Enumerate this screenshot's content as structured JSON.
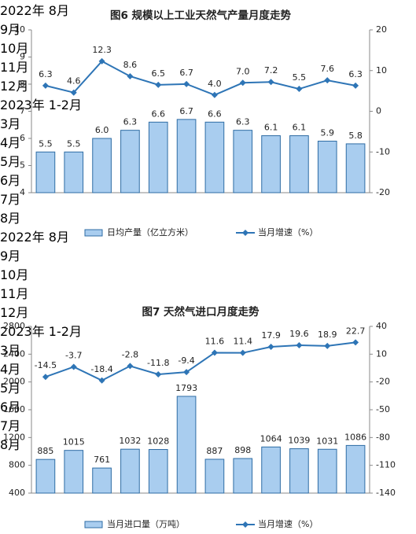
{
  "chart_data": [
    {
      "type": "combo",
      "title": "图6  规模以上工业天然气产量月度走势",
      "categories": [
        "2022年\n8月",
        "9月",
        "10月",
        "11月",
        "12月",
        "2023年\n1-2月",
        "3月",
        "4月",
        "5月",
        "6月",
        "7月",
        "8月"
      ],
      "ylim": [
        4,
        10
      ],
      "yticks": [
        4,
        5,
        6,
        7,
        8,
        9,
        10
      ],
      "y2lim": [
        -20,
        20
      ],
      "y2ticks": [
        -20,
        -10,
        0,
        10,
        20
      ],
      "grid": false,
      "legend": "bottom",
      "series": [
        {
          "name": "日均产量（亿立方米）",
          "type": "bar",
          "color": "#a9cdef",
          "values": [
            5.5,
            5.5,
            6.0,
            6.3,
            6.6,
            6.7,
            6.6,
            6.3,
            6.1,
            6.1,
            5.9,
            5.8
          ],
          "value_labels": [
            "5.5",
            "5.5",
            "6.0",
            "6.3",
            "6.6",
            "6.7",
            "6.6",
            "6.3",
            "6.1",
            "6.1",
            "5.9",
            "5.8"
          ]
        },
        {
          "name": "当月增速（%）",
          "type": "line",
          "axis": "y2",
          "color": "#2e75b6",
          "values": [
            6.3,
            4.6,
            12.3,
            8.6,
            6.5,
            6.7,
            4.0,
            7.0,
            7.2,
            5.5,
            7.6,
            6.3
          ],
          "value_labels": [
            "6.3",
            "4.6",
            "12.3",
            "8.6",
            "6.5",
            "6.7",
            "4.0",
            "7.0",
            "7.2",
            "5.5",
            "7.6",
            "6.3"
          ]
        }
      ]
    },
    {
      "type": "combo",
      "title": "图7  天然气进口月度走势",
      "categories": [
        "2022年\n8月",
        "9月",
        "10月",
        "11月",
        "12月",
        "2023年\n1-2月",
        "3月",
        "4月",
        "5月",
        "6月",
        "7月",
        "8月"
      ],
      "ylim": [
        400,
        2800
      ],
      "yticks": [
        400,
        800,
        1200,
        1600,
        2000,
        2400,
        2800
      ],
      "y2lim": [
        -140,
        40
      ],
      "y2ticks": [
        -140,
        -110,
        -80,
        -50,
        -20,
        10,
        40
      ],
      "grid": false,
      "legend": "bottom",
      "series": [
        {
          "name": "当月进口量（万吨）",
          "type": "bar",
          "color": "#a9cdef",
          "values": [
            885,
            1015,
            761,
            1032,
            1028,
            1793,
            887,
            898,
            1064,
            1039,
            1031,
            1086
          ]
        },
        {
          "name": "当月增速（%）",
          "type": "line",
          "axis": "y2",
          "color": "#2e75b6",
          "values": [
            -14.5,
            -3.7,
            -18.4,
            -2.8,
            -11.8,
            -9.4,
            11.6,
            11.4,
            17.9,
            19.6,
            18.9,
            22.7
          ]
        }
      ]
    }
  ]
}
